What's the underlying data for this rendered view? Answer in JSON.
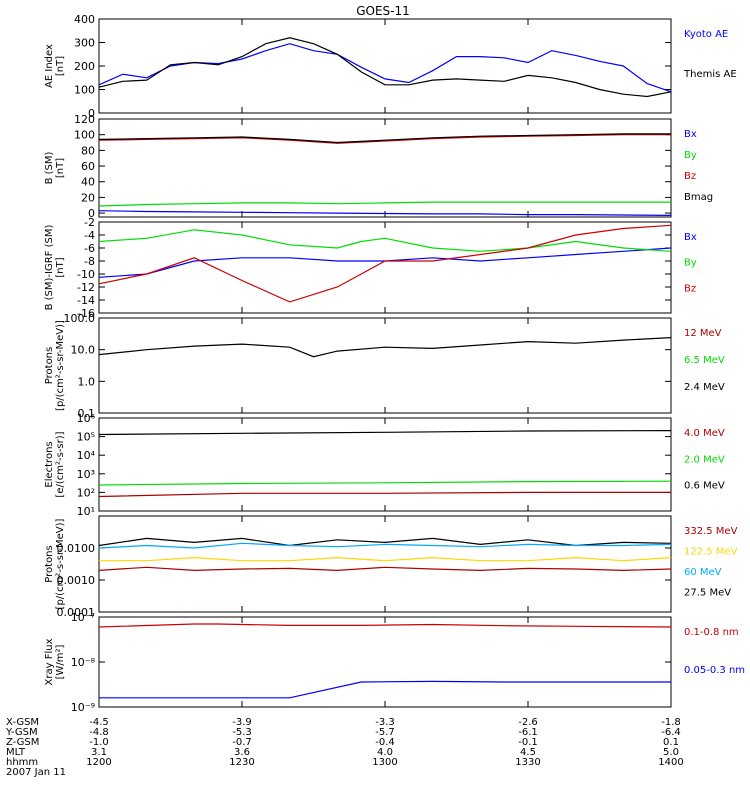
{
  "title": "GOES-11",
  "colors": {
    "black": "#000000",
    "blue": "#0000ff",
    "green": "#00dd00",
    "red": "#cc0000",
    "darkred": "#aa0000",
    "yellow": "#ffd700",
    "cyan": "#00aaff"
  },
  "panels": [
    {
      "id": "ae",
      "ylabel": [
        "AE Index",
        "[nT]"
      ],
      "scale": "linear",
      "yrange": [
        0,
        400
      ],
      "ticks": [
        "0",
        "100",
        "200",
        "300",
        "400"
      ],
      "tickvals": [
        0,
        100,
        200,
        300,
        400
      ],
      "legend": [
        {
          "text": "Kyoto AE",
          "color": "#0000ff"
        },
        {
          "text": "Themis AE",
          "color": "#000000"
        }
      ]
    },
    {
      "id": "bsm",
      "ylabel": [
        "B (SM)",
        "[nT]"
      ],
      "scale": "linear",
      "yrange": [
        -5,
        120
      ],
      "ticks": [
        "0",
        "20",
        "40",
        "60",
        "80",
        "100",
        "120"
      ],
      "tickvals": [
        0,
        20,
        40,
        60,
        80,
        100,
        120
      ],
      "legend": [
        {
          "text": "Bx",
          "color": "#0000ff"
        },
        {
          "text": "By",
          "color": "#00dd00"
        },
        {
          "text": "Bz",
          "color": "#cc0000"
        },
        {
          "text": "Bmag",
          "color": "#000000"
        }
      ]
    },
    {
      "id": "bdiff",
      "ylabel": [
        "B (SM)-IGRF (SM)",
        "[nT]"
      ],
      "scale": "linear",
      "yrange": [
        -16,
        -2
      ],
      "ticks": [
        "-2",
        "-4",
        "-6",
        "-8",
        "-10",
        "-12",
        "-14",
        "-16"
      ],
      "tickvals": [
        -2,
        -4,
        -6,
        -8,
        -10,
        -12,
        -14,
        -16
      ],
      "legend": [
        {
          "text": "Bx",
          "color": "#0000ff"
        },
        {
          "text": "By",
          "color": "#00dd00"
        },
        {
          "text": "Bz",
          "color": "#cc0000"
        }
      ]
    },
    {
      "id": "protonsA",
      "ylabel": [
        "Protons",
        "[p/(cm²-s-sr-MeV)]"
      ],
      "scale": "log",
      "yrange": [
        0.1,
        100
      ],
      "ticks": [
        "0.1",
        "1.0",
        "10.0",
        "100.0"
      ],
      "tickvals": [
        0.1,
        1,
        10,
        100
      ],
      "legend": [
        {
          "text": "12 MeV",
          "color": "#aa0000"
        },
        {
          "text": "6.5 MeV",
          "color": "#00dd00"
        },
        {
          "text": "2.4 MeV",
          "color": "#000000"
        }
      ]
    },
    {
      "id": "electrons",
      "ylabel": [
        "Electrons",
        "[e/(cm²-s-sr)]"
      ],
      "scale": "log",
      "yrange": [
        10,
        1000000
      ],
      "ticks": [
        "10¹",
        "10²",
        "10³",
        "10⁴",
        "10⁵",
        "10⁶"
      ],
      "tickvals": [
        10,
        100,
        1000,
        10000,
        100000,
        1000000
      ],
      "legend": [
        {
          "text": "4.0 MeV",
          "color": "#aa0000"
        },
        {
          "text": "2.0 MeV",
          "color": "#00dd00"
        },
        {
          "text": "0.6 MeV",
          "color": "#000000"
        }
      ]
    },
    {
      "id": "protonsB",
      "ylabel": [
        "Protons",
        "[p/(cm²-s-sr-MeV)]"
      ],
      "scale": "log",
      "yrange": [
        0.0001,
        0.1
      ],
      "ticks": [
        "0.0001",
        "0.0010",
        "0.0100"
      ],
      "tickvals": [
        0.0001,
        0.001,
        0.01
      ],
      "legend": [
        {
          "text": "332.5 MeV",
          "color": "#aa0000"
        },
        {
          "text": "122.5 MeV",
          "color": "#ffd700"
        },
        {
          "text": "60 MeV",
          "color": "#00aaff"
        },
        {
          "text": "27.5 MeV",
          "color": "#000000"
        }
      ]
    },
    {
      "id": "xray",
      "ylabel": [
        "Xray Flux",
        "[W/m²]"
      ],
      "scale": "log",
      "yrange": [
        1e-09,
        1e-07
      ],
      "ticks": [
        "10⁻⁷",
        "10⁻⁸",
        "10⁻⁹"
      ],
      "tickvals": [
        1e-07,
        1e-08,
        1e-09
      ],
      "legend": [
        {
          "text": "0.1-0.8 nm",
          "color": "#cc0000"
        },
        {
          "text": "0.05-0.3 nm",
          "color": "#0000ff"
        }
      ]
    }
  ],
  "x_axis": {
    "row_labels": [
      "X-GSM",
      "Y-GSM",
      "Z-GSM",
      "MLT",
      "hhmm",
      "2007 Jan 11"
    ],
    "columns": [
      {
        "time": "1200",
        "vals": [
          "-4.5",
          "-4.8",
          "-1.0",
          "3.1"
        ]
      },
      {
        "time": "1230",
        "vals": [
          "-3.9",
          "-5.3",
          "-0.7",
          "3.6"
        ]
      },
      {
        "time": "1300",
        "vals": [
          "-3.3",
          "-5.7",
          "-0.4",
          "4.0"
        ]
      },
      {
        "time": "1330",
        "vals": [
          "-2.6",
          "-6.1",
          "-0.1",
          "4.5"
        ]
      },
      {
        "time": "1400",
        "vals": [
          "-1.8",
          "-6.4",
          "0.1",
          "5.0"
        ]
      }
    ]
  },
  "chart_data": [
    {
      "type": "line",
      "panel": "ae",
      "x_minutes": [
        0,
        5,
        10,
        15,
        20,
        25,
        30,
        35,
        40,
        45,
        50,
        55,
        60,
        65,
        70,
        75,
        80,
        85,
        90,
        95,
        100,
        105,
        110,
        115,
        120
      ],
      "series": [
        {
          "name": "Kyoto AE",
          "color": "#0000ff",
          "values": [
            120,
            165,
            150,
            200,
            215,
            210,
            230,
            265,
            295,
            265,
            250,
            195,
            145,
            130,
            180,
            240,
            240,
            235,
            215,
            265,
            245,
            220,
            200,
            125,
            90
          ]
        },
        {
          "name": "Themis AE",
          "color": "#000000",
          "values": [
            110,
            135,
            140,
            205,
            215,
            205,
            240,
            295,
            320,
            295,
            250,
            175,
            120,
            120,
            140,
            145,
            140,
            135,
            160,
            150,
            130,
            100,
            80,
            70,
            90
          ]
        }
      ]
    },
    {
      "type": "line",
      "panel": "bsm",
      "x_minutes": [
        0,
        10,
        20,
        30,
        40,
        50,
        60,
        70,
        80,
        90,
        100,
        110,
        120
      ],
      "series": [
        {
          "name": "Bx",
          "color": "#0000ff",
          "values": [
            3,
            2,
            1.5,
            1,
            0.5,
            0,
            -0.5,
            -1,
            -1,
            -2,
            -2,
            -2.5,
            -3
          ]
        },
        {
          "name": "By",
          "color": "#00dd00",
          "values": [
            9,
            11,
            12,
            13,
            13,
            12,
            13,
            14,
            14,
            14,
            14,
            14,
            14
          ]
        },
        {
          "name": "Bz",
          "color": "#cc0000",
          "values": [
            93,
            94,
            95,
            96,
            93,
            89,
            92,
            95,
            97,
            98,
            99,
            100,
            100
          ]
        },
        {
          "name": "Bmag",
          "color": "#000000",
          "values": [
            94,
            95,
            96,
            97,
            94,
            90,
            93,
            96,
            98,
            99,
            100,
            101,
            101
          ]
        }
      ]
    },
    {
      "type": "line",
      "panel": "bdiff",
      "x_minutes": [
        0,
        10,
        20,
        30,
        40,
        50,
        55,
        60,
        70,
        80,
        90,
        100,
        110,
        120
      ],
      "series": [
        {
          "name": "Bx",
          "color": "#0000ff",
          "values": [
            -10.5,
            -10,
            -8,
            -7.5,
            -7.5,
            -8,
            -8,
            -8,
            -7.5,
            -8,
            -7.5,
            -7,
            -6.5,
            -6
          ]
        },
        {
          "name": "By",
          "color": "#00dd00",
          "values": [
            -5,
            -4.5,
            -3.2,
            -4,
            -5.5,
            -6,
            -5,
            -4.5,
            -6,
            -6.5,
            -6,
            -5,
            -6,
            -6.5
          ]
        },
        {
          "name": "Bz",
          "color": "#cc0000",
          "values": [
            -11.5,
            -10,
            -7.5,
            -11,
            -14.3,
            -12,
            -10,
            -8,
            -8,
            -7,
            -6,
            -4,
            -3,
            -2.5
          ]
        }
      ]
    },
    {
      "type": "line",
      "panel": "protonsA",
      "x_minutes": [
        0,
        10,
        20,
        30,
        40,
        45,
        50,
        60,
        70,
        80,
        90,
        100,
        110,
        120
      ],
      "series": [
        {
          "name": "2.4 MeV",
          "color": "#000000",
          "values": [
            7,
            10,
            13,
            15,
            12,
            6,
            9,
            12,
            11,
            14,
            18,
            16,
            20,
            24
          ]
        }
      ]
    },
    {
      "type": "line",
      "panel": "electrons",
      "x_minutes": [
        0,
        30,
        60,
        90,
        120
      ],
      "series": [
        {
          "name": "0.6 MeV",
          "color": "#000000",
          "values": [
            130000,
            150000,
            170000,
            200000,
            210000
          ]
        },
        {
          "name": "2.0 MeV",
          "color": "#00dd00",
          "values": [
            250,
            300,
            330,
            380,
            400
          ]
        },
        {
          "name": "4.0 MeV",
          "color": "#aa0000",
          "values": [
            60,
            90,
            90,
            100,
            100
          ]
        }
      ]
    },
    {
      "type": "line",
      "panel": "protonsB",
      "x_minutes": [
        0,
        10,
        20,
        30,
        40,
        50,
        60,
        70,
        80,
        90,
        100,
        110,
        120
      ],
      "series": [
        {
          "name": "27.5 MeV",
          "color": "#000000",
          "values": [
            0.012,
            0.02,
            0.015,
            0.02,
            0.012,
            0.018,
            0.015,
            0.02,
            0.013,
            0.018,
            0.012,
            0.015,
            0.014
          ]
        },
        {
          "name": "60 MeV",
          "color": "#00aaff",
          "values": [
            0.01,
            0.012,
            0.01,
            0.014,
            0.012,
            0.011,
            0.013,
            0.012,
            0.011,
            0.013,
            0.012,
            0.012,
            0.013
          ]
        },
        {
          "name": "122.5 MeV",
          "color": "#ffd700",
          "values": [
            0.004,
            0.004,
            0.005,
            0.004,
            0.004,
            0.005,
            0.004,
            0.005,
            0.004,
            0.004,
            0.005,
            0.004,
            0.005
          ]
        },
        {
          "name": "332.5 MeV",
          "color": "#aa0000",
          "values": [
            0.002,
            0.0025,
            0.002,
            0.0022,
            0.0023,
            0.002,
            0.0025,
            0.0022,
            0.002,
            0.0023,
            0.0022,
            0.002,
            0.0022
          ]
        }
      ]
    },
    {
      "type": "line",
      "panel": "xray",
      "x_minutes": [
        0,
        20,
        25,
        40,
        55,
        70,
        85,
        100,
        120
      ],
      "series": [
        {
          "name": "0.1-0.8 nm",
          "color": "#cc0000",
          "values": [
            6e-08,
            7e-08,
            7e-08,
            6.5e-08,
            6.5e-08,
            6.8e-08,
            6.4e-08,
            6.2e-08,
            6e-08
          ]
        },
        {
          "name": "0.05-0.3 nm",
          "color": "#0000ff",
          "values": [
            1.6e-09,
            1.6e-09,
            1.6e-09,
            1.6e-09,
            3.6e-09,
            3.7e-09,
            3.6e-09,
            3.6e-09,
            3.6e-09
          ]
        }
      ]
    }
  ]
}
